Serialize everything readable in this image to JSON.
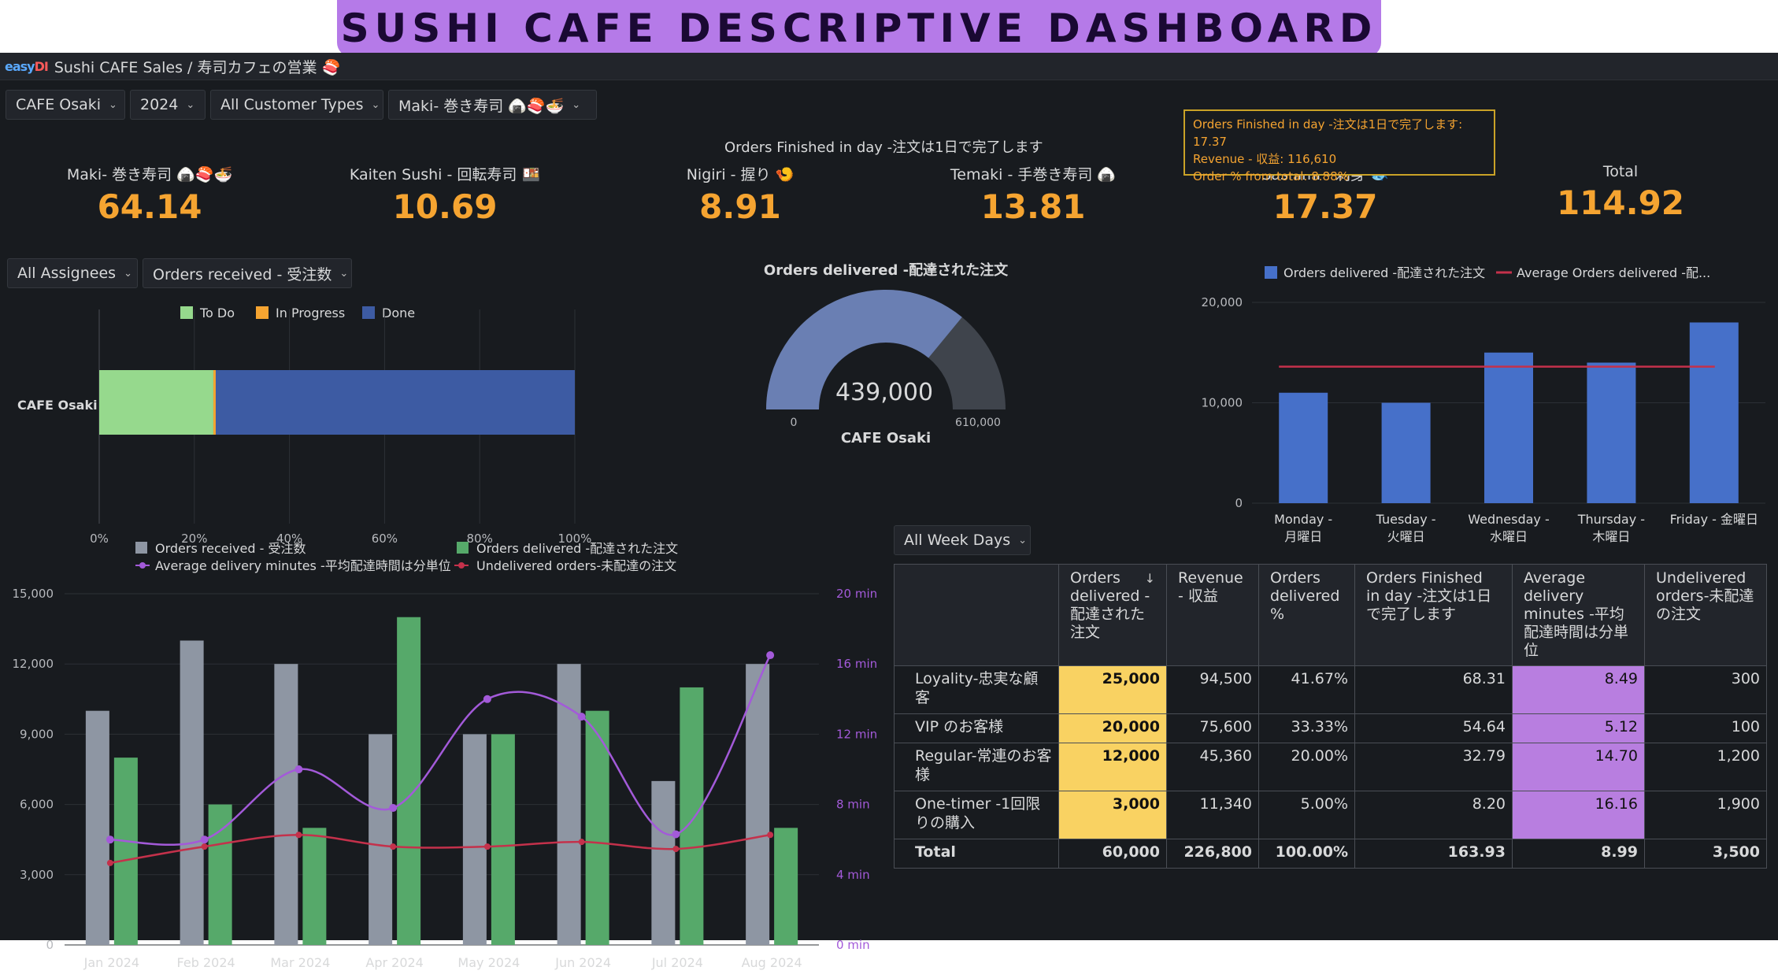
{
  "banner": "SUSHI CAFE DESCRIPTIVE DASHBOARD",
  "app": {
    "logo_a": "easy",
    "logo_b": "DI",
    "title": "Sushi CAFE Sales / 寿司カフェの営業 🍣"
  },
  "filters": {
    "cafe": "CAFE Osaki",
    "year": "2024",
    "customer": "All Customer Types",
    "product": "Maki- 巻き寿司 🍙🍣🍜",
    "assignees": "All Assignees",
    "metric": "Orders received - 受注数",
    "weekdays": "All Week Days"
  },
  "stats": {
    "title": "Orders Finished in day -注文は1日で完了します",
    "items": [
      {
        "label": "Maki- 巻き寿司 🍙🍣🍜",
        "value": "64.14"
      },
      {
        "label": "Kaiten Sushi - 回転寿司 🍱",
        "value": "10.69"
      },
      {
        "label": "Nigiri - 握り 🍤",
        "value": "8.91"
      },
      {
        "label": "Temaki  - 手巻き寿司 🍙",
        "value": "13.81"
      },
      {
        "label": "Sashimi - 刺身 🐟",
        "value": "17.37"
      },
      {
        "label": "Total",
        "value": "114.92"
      }
    ]
  },
  "tooltip": {
    "line1": "Orders Finished in day -注文は1日で完了します: 17.37",
    "line2": "Revenue - 収益: 116,610",
    "line3": "Order % from total: 8.88%"
  },
  "bar_status": {
    "legend": [
      "To Do",
      "In Progress",
      "Done"
    ],
    "colors": [
      "#96d98d",
      "#f5a431",
      "#3d5ba3"
    ],
    "category": "CAFE Osaki",
    "todo": 0.24,
    "inprogress": 0.005,
    "done": 0.755,
    "ticks": [
      "0%",
      "20%",
      "40%",
      "60%",
      "80%",
      "100%"
    ]
  },
  "gauge": {
    "title": "Orders delivered -配達された注文",
    "value_text": "439,000",
    "value": 439000,
    "max": 610000,
    "min_text": "0",
    "max_text": "610,000",
    "caption": "CAFE Osaki"
  },
  "weekday_chart": {
    "legend_bar": "Orders delivered -配達された注文",
    "legend_line": "Average Orders delivered -配...",
    "categories": [
      [
        "Monday -",
        "月曜日"
      ],
      [
        "Tuesday -",
        "火曜日"
      ],
      [
        "Wednesday -",
        "水曜日"
      ],
      [
        "Thursday -",
        "木曜日"
      ],
      [
        "Friday - 金曜日"
      ]
    ],
    "values": [
      11000,
      10000,
      15000,
      14000,
      18000
    ],
    "average": 13600,
    "yticks": [
      "0",
      "10,000",
      "20,000"
    ]
  },
  "monthly_chart": {
    "legend": {
      "received": "Orders received - 受注数",
      "delivered": "Orders delivered -配達された注文",
      "avg": "Average delivery minutes -平均配達時間は分単位",
      "undelivered": "Undelivered orders-未配達の注文"
    },
    "months": [
      "Jan 2024",
      "Feb 2024",
      "Mar 2024",
      "Apr 2024",
      "May 2024",
      "Jun 2024",
      "Jul 2024",
      "Aug 2024"
    ],
    "received": [
      10000,
      13000,
      12000,
      9000,
      9000,
      12000,
      7000,
      12000
    ],
    "delivered": [
      8000,
      6000,
      5000,
      14000,
      9000,
      10000,
      11000,
      5000
    ],
    "avg_minutes": [
      6,
      6,
      10,
      7.8,
      14,
      13,
      6.3,
      16.5
    ],
    "undelivered": [
      3500,
      4200,
      4700,
      4200,
      4200,
      4400,
      4100,
      4700
    ],
    "yticks_left": [
      "0",
      "3,000",
      "6,000",
      "9,000",
      "12,000",
      "15,000"
    ],
    "yticks_right": [
      "0 min",
      "4 min",
      "8 min",
      "12 min",
      "16 min",
      "20 min"
    ]
  },
  "table": {
    "headers": [
      "",
      "Orders delivered -配達された注文",
      "Revenue - 収益",
      "Orders delivered %",
      "Orders Finished in day -注文は1日で完了します",
      "Average delivery minutes -平均配達時間は分単位",
      "Undelivered orders-未配達の注文"
    ],
    "sort_icon": "↓",
    "rows": [
      [
        "Loyality-忠実な顧客",
        "25,000",
        "94,500",
        "41.67%",
        "68.31",
        "8.49",
        "300"
      ],
      [
        "VIP のお客様",
        "20,000",
        "75,600",
        "33.33%",
        "54.64",
        "5.12",
        "100"
      ],
      [
        "Regular-常連のお客様",
        "12,000",
        "45,360",
        "20.00%",
        "32.79",
        "14.70",
        "1,200"
      ],
      [
        "One-timer -1回限りの購入",
        "3,000",
        "11,340",
        "5.00%",
        "8.20",
        "16.16",
        "1,900"
      ]
    ],
    "total": [
      "Total",
      "60,000",
      "226,800",
      "100.00%",
      "163.93",
      "8.99",
      "3,500"
    ]
  },
  "colors": {
    "orange": "#f5a431",
    "yellow": "#f9d262",
    "purple": "#b87ee0",
    "bar_blue": "#3d5ba3",
    "grey": "#8e96a3",
    "green": "#56a96a",
    "red": "#c4314b",
    "violet": "#a35ad9"
  }
}
